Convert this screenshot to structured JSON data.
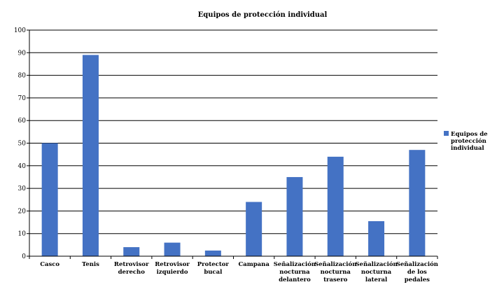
{
  "chart_data": {
    "type": "bar",
    "title": "Equipos de protección individual",
    "categories": [
      [
        "Casco"
      ],
      [
        "Tenis"
      ],
      [
        "Retrovisor",
        "derecho"
      ],
      [
        "Retrovisor",
        "izquierdo"
      ],
      [
        "Protector",
        "bucal"
      ],
      [
        "Campana"
      ],
      [
        "Señalización",
        "nocturna",
        "delantero"
      ],
      [
        "Señalización",
        "nocturna",
        "trasero"
      ],
      [
        "Señalización",
        "nocturna",
        "lateral"
      ],
      [
        "Señalización",
        "de los",
        "pedales"
      ]
    ],
    "series": [
      {
        "name": [
          "Equipos de",
          "protección",
          "individual"
        ],
        "values": [
          50,
          89,
          4,
          6,
          2.5,
          24,
          35,
          44,
          15.5,
          47
        ],
        "color": "#4472C4"
      }
    ],
    "ylim": [
      0,
      100
    ],
    "yticks": [
      0,
      10,
      20,
      30,
      40,
      50,
      60,
      70,
      80,
      90,
      100
    ],
    "grid": true,
    "legend": "right"
  }
}
